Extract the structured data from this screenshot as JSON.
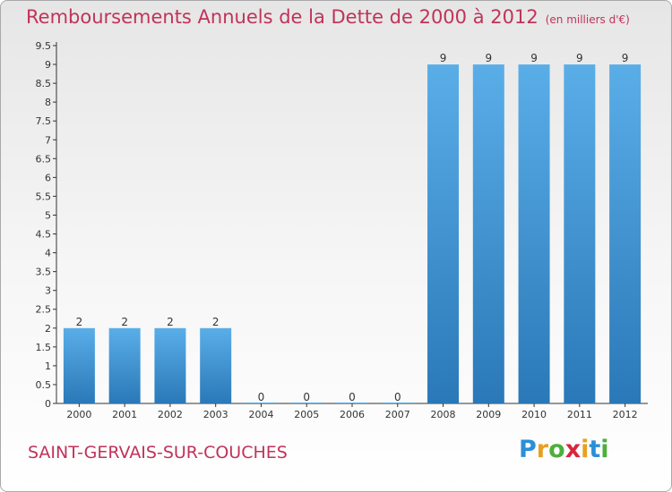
{
  "header": {
    "title": "Remboursements Annuels de la Dette de 2000 à 2012",
    "unit": "(en milliers d'€)"
  },
  "footer": {
    "commune": "SAINT-GERVAIS-SUR-COUCHES",
    "brand": [
      "P",
      "r",
      "o",
      "x",
      "i",
      "t",
      "i"
    ],
    "brand_colors": [
      "#2b8fd6",
      "#e8a020",
      "#4caf3a",
      "#d7263d",
      "#e8a020",
      "#2b8fd6",
      "#4caf3a"
    ]
  },
  "colors": {
    "bar_top": "#5aaee8",
    "bar_bottom": "#2a78b8",
    "axis": "#333333",
    "title": "#c0335a"
  },
  "chart_data": {
    "type": "bar",
    "categories": [
      "2000",
      "2001",
      "2002",
      "2003",
      "2004",
      "2005",
      "2006",
      "2007",
      "2008",
      "2009",
      "2010",
      "2011",
      "2012"
    ],
    "values": [
      2,
      2,
      2,
      2,
      0,
      0,
      0,
      0,
      9,
      9,
      9,
      9,
      9
    ],
    "ylim": [
      0,
      9.5
    ],
    "yticks": [
      "0",
      "0.5",
      "1",
      "1.5",
      "2",
      "2.5",
      "3",
      "3.5",
      "4",
      "4.5",
      "5",
      "5.5",
      "6",
      "6.5",
      "7",
      "7.5",
      "8",
      "8.5",
      "9",
      "9.5"
    ],
    "data_labels": [
      "2",
      "2",
      "2",
      "2",
      "0",
      "0",
      "0",
      "0",
      "9",
      "9",
      "9",
      "9",
      "9"
    ],
    "grid": false,
    "legend": "none"
  }
}
